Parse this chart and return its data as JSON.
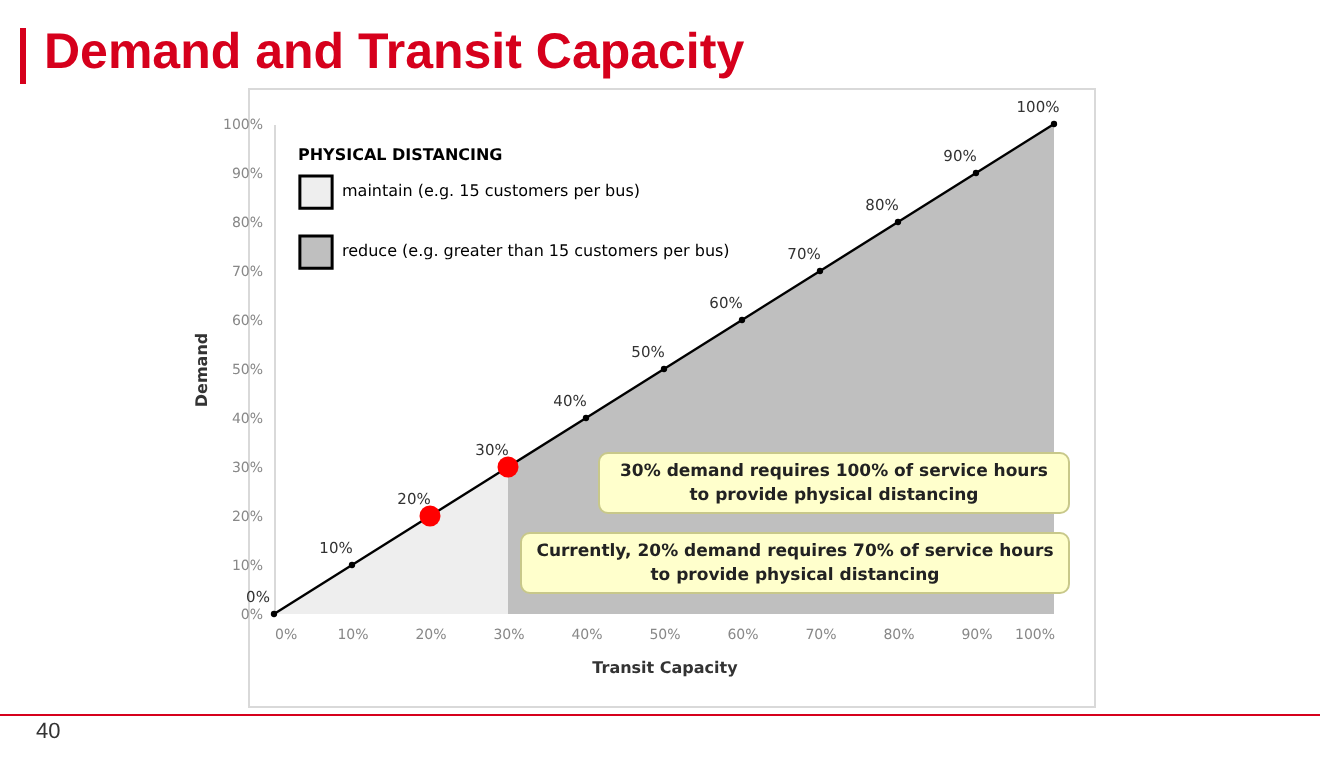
{
  "chart_data": {
    "type": "line",
    "title": "Demand and Transit Capacity",
    "xlabel": "Transit Capacity",
    "ylabel": "Demand",
    "legend_title": "PHYSICAL DISTANCING",
    "legend": "top left",
    "grid": false,
    "xlim": [
      0,
      100
    ],
    "ylim": [
      0,
      100
    ],
    "xticks": [
      {
        "value": 0,
        "label": "0%"
      },
      {
        "value": 10,
        "label": "10%"
      },
      {
        "value": 20,
        "label": "20%"
      },
      {
        "value": 30,
        "label": "30%"
      },
      {
        "value": 40,
        "label": "40%"
      },
      {
        "value": 50,
        "label": "50%"
      },
      {
        "value": 60,
        "label": "60%"
      },
      {
        "value": 70,
        "label": "70%"
      },
      {
        "value": 80,
        "label": "80%"
      },
      {
        "value": 90,
        "label": "90%"
      },
      {
        "value": 100,
        "label": "100%"
      }
    ],
    "yticks": [
      {
        "value": 0,
        "label": "0%"
      },
      {
        "value": 10,
        "label": "10%"
      },
      {
        "value": 20,
        "label": "20%"
      },
      {
        "value": 30,
        "label": "30%"
      },
      {
        "value": 40,
        "label": "40%"
      },
      {
        "value": 50,
        "label": "50%"
      },
      {
        "value": 60,
        "label": "60%"
      },
      {
        "value": 70,
        "label": "70%"
      },
      {
        "value": 80,
        "label": "80%"
      },
      {
        "value": 90,
        "label": "90%"
      },
      {
        "value": 100,
        "label": "100%"
      }
    ],
    "series": [
      {
        "type": "area",
        "name": "maintain (e.g. 15 customers per bus)",
        "color": "#eeeeee",
        "x": [
          0,
          30
        ],
        "values": [
          0,
          30
        ]
      },
      {
        "type": "area",
        "name": "reduce (e.g. greater than 15 customers per bus)",
        "color": "#bfbfbf",
        "x": [
          30,
          100
        ],
        "values": [
          30,
          100
        ]
      },
      {
        "type": "line",
        "marker": "circle",
        "color": "#000000",
        "x": [
          0,
          10,
          20,
          30,
          40,
          50,
          60,
          70,
          80,
          90,
          100
        ],
        "values": [
          0,
          10,
          20,
          30,
          40,
          50,
          60,
          70,
          80,
          90,
          100
        ],
        "value_labels": [
          "0%",
          "10%",
          "20%",
          "30%",
          "40%",
          "50%",
          "60%",
          "70%",
          "80%",
          "90%",
          "100%"
        ]
      },
      {
        "type": "scatter",
        "color": "#ff0000",
        "x": [
          20,
          30
        ],
        "values": [
          20,
          30
        ]
      }
    ],
    "annotations": [
      "30% demand requires 100% of service hours\nto provide physical distancing",
      "Currently, 20% demand requires 70% of service hours\nto provide physical distancing",
      "40"
    ]
  }
}
